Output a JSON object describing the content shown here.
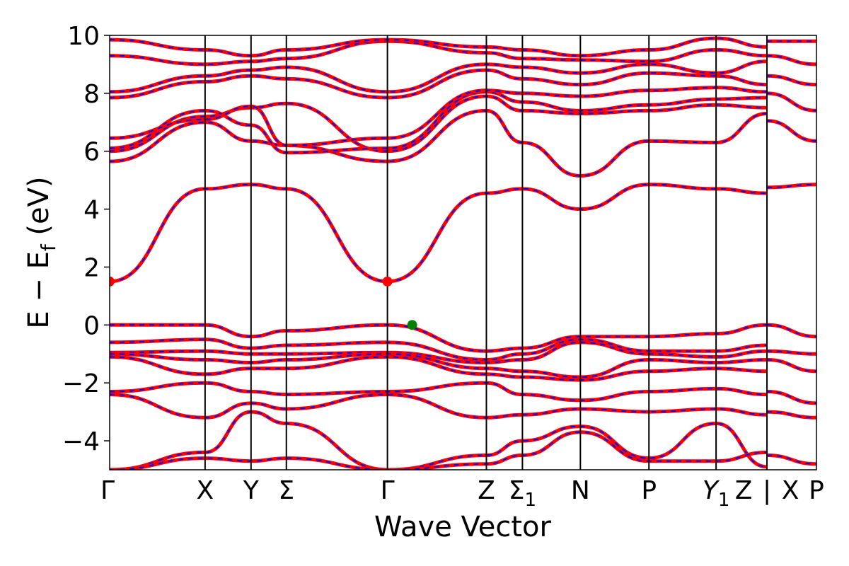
{
  "chart_data": {
    "type": "line",
    "title": "",
    "xlabel": "Wave Vector",
    "ylabel": "E − E_f (eV)",
    "ylabel_parts": {
      "main": "E − E",
      "sub": "f",
      "unit": " (eV)"
    },
    "ylim": [
      -5,
      10
    ],
    "yticks": [
      -4,
      -2,
      0,
      2,
      4,
      6,
      8,
      10
    ],
    "ytick_labels": [
      "−4",
      "−2",
      "0",
      "2",
      "4",
      "6",
      "8",
      "10"
    ],
    "grid": false,
    "legend": "none",
    "colors": {
      "line_main": "#ff0000",
      "line_dash": "#0000ff",
      "cbm_marker": "#ff0000",
      "vbm_marker": "#008000",
      "frame": "#000000"
    },
    "kpoints": [
      {
        "label": "Γ",
        "sub": "",
        "x": 0.0
      },
      {
        "label": "X",
        "sub": "",
        "x": 1.35
      },
      {
        "label": "Y",
        "sub": "",
        "x": 2.0
      },
      {
        "label": "Σ",
        "sub": "",
        "x": 2.5
      },
      {
        "label": "Γ",
        "sub": "",
        "x": 3.93
      },
      {
        "label": "Z",
        "sub": "",
        "x": 5.33
      },
      {
        "label": "Σ",
        "sub": "1",
        "x": 5.84
      },
      {
        "label": "N",
        "sub": "",
        "x": 6.66
      },
      {
        "label": "P",
        "sub": "",
        "x": 7.63
      },
      {
        "label": "Y",
        "sub": "1",
        "x": 8.58
      },
      {
        "label": "Z",
        "sub": "",
        "x": 9.3
      },
      {
        "label": "|",
        "sub": "",
        "x": 9.3
      },
      {
        "label": "X",
        "sub": "",
        "x": 9.3
      },
      {
        "label": "P",
        "sub": "",
        "x": 10.0
      }
    ],
    "band_break": 9.3,
    "segments": [
      [
        0.0,
        9.3
      ],
      [
        9.3,
        10.0
      ]
    ],
    "series": [
      {
        "x": [
          0,
          1.35,
          2.0,
          2.5,
          3.93,
          5.33,
          5.84,
          6.66,
          7.63,
          8.58,
          9.3
        ],
        "values": [
          1.5,
          4.7,
          4.85,
          4.7,
          1.5,
          4.55,
          4.7,
          4.0,
          4.85,
          4.7,
          4.55
        ]
      },
      {
        "x": [
          0,
          1.35,
          2.0,
          2.5,
          3.93,
          5.33,
          5.84,
          6.66,
          7.63,
          8.58,
          9.3
        ],
        "values": [
          5.65,
          7.0,
          6.35,
          6.2,
          5.65,
          7.4,
          6.3,
          5.15,
          6.35,
          6.3,
          7.3
        ]
      },
      {
        "x": [
          0,
          1.35,
          2.0,
          2.5,
          3.93,
          5.33,
          5.84,
          6.66,
          7.63,
          8.58,
          9.3
        ],
        "values": [
          6.0,
          7.2,
          7.5,
          7.65,
          6.0,
          7.9,
          7.4,
          7.3,
          7.4,
          7.6,
          7.5
        ]
      },
      {
        "x": [
          0,
          1.35,
          2.0,
          2.5,
          3.93,
          5.33,
          5.84,
          6.66,
          7.63,
          8.58,
          9.3
        ],
        "values": [
          6.1,
          7.4,
          6.9,
          5.95,
          6.1,
          8.05,
          7.7,
          7.4,
          7.6,
          7.8,
          7.85
        ]
      },
      {
        "x": [
          0,
          1.35,
          2.0,
          2.5,
          3.93,
          5.33,
          5.84,
          6.66,
          7.63,
          8.58,
          9.3
        ],
        "values": [
          6.45,
          7.1,
          7.55,
          6.2,
          6.45,
          8.1,
          8.0,
          7.9,
          8.1,
          8.2,
          8.05
        ]
      },
      {
        "x": [
          0,
          1.35,
          2.0,
          2.5,
          3.93,
          5.33,
          5.84,
          6.66,
          7.63,
          8.58,
          9.3
        ],
        "values": [
          7.85,
          8.4,
          8.6,
          8.5,
          7.85,
          8.8,
          8.5,
          8.3,
          8.7,
          8.6,
          8.3
        ]
      },
      {
        "x": [
          0,
          1.35,
          2.0,
          2.5,
          3.93,
          5.33,
          5.84,
          6.66,
          7.63,
          8.58,
          9.3
        ],
        "values": [
          8.05,
          8.6,
          8.8,
          8.9,
          8.05,
          9.0,
          8.9,
          8.7,
          9.0,
          8.7,
          9.1
        ]
      },
      {
        "x": [
          0,
          1.35,
          2.0,
          2.5,
          3.93,
          5.33,
          5.84,
          6.66,
          7.63,
          8.58,
          9.3
        ],
        "values": [
          9.3,
          9.0,
          9.1,
          9.2,
          9.8,
          9.4,
          9.2,
          9.15,
          9.1,
          9.5,
          9.3
        ]
      },
      {
        "x": [
          0,
          1.35,
          2.0,
          2.5,
          3.93,
          5.33,
          5.84,
          6.66,
          7.63,
          8.58,
          9.3
        ],
        "values": [
          9.85,
          9.5,
          9.3,
          9.5,
          9.85,
          9.6,
          9.5,
          9.3,
          9.5,
          9.9,
          9.6
        ]
      },
      {
        "x": [
          0,
          1.35,
          2.0,
          2.5,
          3.93,
          5.33,
          5.84,
          6.66,
          7.63,
          8.58,
          9.3
        ],
        "values": [
          0.0,
          0.0,
          -0.4,
          -0.2,
          0.0,
          -0.9,
          -0.8,
          -0.4,
          -0.4,
          -0.3,
          0.0
        ]
      },
      {
        "x": [
          0,
          1.35,
          2.0,
          2.5,
          3.93,
          5.33,
          5.84,
          6.66,
          7.63,
          8.58,
          9.3
        ],
        "values": [
          -0.6,
          -0.5,
          -0.8,
          -0.7,
          -0.6,
          -1.2,
          -1.0,
          -0.5,
          -0.9,
          -0.9,
          -0.7
        ]
      },
      {
        "x": [
          0,
          1.35,
          2.0,
          2.5,
          3.93,
          5.33,
          5.84,
          6.66,
          7.63,
          8.58,
          9.3
        ],
        "values": [
          -0.95,
          -0.9,
          -1.0,
          -1.0,
          -0.95,
          -1.3,
          -1.2,
          -0.6,
          -1.0,
          -1.1,
          -0.9
        ]
      },
      {
        "x": [
          0,
          1.35,
          2.0,
          2.5,
          3.93,
          5.33,
          5.84,
          6.66,
          7.63,
          8.58,
          9.3
        ],
        "values": [
          -1.0,
          -1.2,
          -1.3,
          -1.2,
          -1.0,
          -1.5,
          -1.6,
          -1.8,
          -1.2,
          -1.3,
          -1.2
        ]
      },
      {
        "x": [
          0,
          1.35,
          2.0,
          2.5,
          3.93,
          5.33,
          5.84,
          6.66,
          7.63,
          8.58,
          9.3
        ],
        "values": [
          -1.1,
          -1.7,
          -1.5,
          -1.5,
          -1.1,
          -1.7,
          -1.8,
          -1.9,
          -1.6,
          -1.5,
          -1.6
        ]
      },
      {
        "x": [
          0,
          1.35,
          2.0,
          2.5,
          3.93,
          5.33,
          5.84,
          6.66,
          7.63,
          8.58,
          9.3
        ],
        "values": [
          -2.3,
          -2.0,
          -2.3,
          -2.4,
          -2.3,
          -2.0,
          -2.4,
          -2.6,
          -2.3,
          -2.2,
          -2.4
        ]
      },
      {
        "x": [
          0,
          1.35,
          2.0,
          2.5,
          3.93,
          5.33,
          5.84,
          6.66,
          7.63,
          8.58,
          9.3
        ],
        "values": [
          -2.4,
          -3.2,
          -2.7,
          -2.9,
          -2.4,
          -3.2,
          -3.1,
          -2.9,
          -3.0,
          -2.9,
          -3.1
        ]
      },
      {
        "x": [
          0,
          1.35,
          2.0,
          2.5,
          3.93,
          5.33,
          5.84,
          6.66,
          7.63,
          8.58,
          9.3
        ],
        "values": [
          -5.0,
          -4.4,
          -3.0,
          -3.4,
          -5.0,
          -4.5,
          -4.0,
          -3.5,
          -4.6,
          -3.4,
          -4.9
        ]
      },
      {
        "x": [
          0,
          1.35,
          2.0,
          2.5,
          3.93,
          5.33,
          5.84,
          6.66,
          7.63,
          8.58,
          9.3
        ],
        "values": [
          -5.0,
          -4.6,
          -4.7,
          -4.6,
          -5.0,
          -4.8,
          -4.5,
          -3.7,
          -4.7,
          -4.7,
          -4.4
        ]
      }
    ],
    "series_tail": [
      {
        "x": [
          9.3,
          10.0
        ],
        "values": [
          4.75,
          4.85
        ]
      },
      {
        "x": [
          9.3,
          10.0
        ],
        "values": [
          7.05,
          6.35
        ]
      },
      {
        "x": [
          9.3,
          10.0
        ],
        "values": [
          8.0,
          7.4
        ]
      },
      {
        "x": [
          9.3,
          10.0
        ],
        "values": [
          8.6,
          8.3
        ]
      },
      {
        "x": [
          9.3,
          10.0
        ],
        "values": [
          9.3,
          9.0
        ]
      },
      {
        "x": [
          9.3,
          10.0
        ],
        "values": [
          9.8,
          9.8
        ]
      },
      {
        "x": [
          9.3,
          10.0
        ],
        "values": [
          0.0,
          -0.4
        ]
      },
      {
        "x": [
          9.3,
          10.0
        ],
        "values": [
          -0.9,
          -1.0
        ]
      },
      {
        "x": [
          9.3,
          10.0
        ],
        "values": [
          -1.2,
          -1.6
        ]
      },
      {
        "x": [
          9.3,
          10.0
        ],
        "values": [
          -2.3,
          -2.7
        ]
      },
      {
        "x": [
          9.3,
          10.0
        ],
        "values": [
          -3.0,
          -3.2
        ]
      },
      {
        "x": [
          9.3,
          10.0
        ],
        "values": [
          -4.5,
          -4.8
        ]
      }
    ],
    "markers": [
      {
        "x": 0.0,
        "y": 1.5,
        "kind": "cbm"
      },
      {
        "x": 3.93,
        "y": 1.5,
        "kind": "cbm"
      },
      {
        "x": 4.28,
        "y": 0.0,
        "kind": "vbm"
      }
    ]
  }
}
